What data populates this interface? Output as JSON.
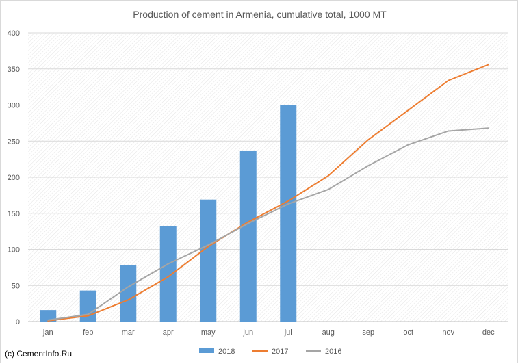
{
  "chart_data": {
    "type": "bar",
    "title": "Production of cement in Armenia, cumulative total, 1000 MT",
    "categories": [
      "jan",
      "feb",
      "mar",
      "apr",
      "may",
      "jun",
      "jul",
      "aug",
      "sep",
      "oct",
      "nov",
      "dec"
    ],
    "ylim": [
      0,
      400
    ],
    "yticks": [
      0,
      50,
      100,
      150,
      200,
      250,
      300,
      350,
      400
    ],
    "series": [
      {
        "name": "2018",
        "type": "bar",
        "color": "#5b9bd5",
        "values": [
          16,
          43,
          78,
          132,
          169,
          237,
          300,
          null,
          null,
          null,
          null,
          null
        ]
      },
      {
        "name": "2017",
        "type": "line",
        "color": "#ed7d31",
        "values": [
          1,
          8,
          30,
          62,
          104,
          138,
          167,
          202,
          252,
          293,
          334,
          356
        ]
      },
      {
        "name": "2016",
        "type": "line",
        "color": "#a5a5a5",
        "values": [
          2,
          10,
          48,
          80,
          106,
          136,
          163,
          183,
          216,
          245,
          264,
          268
        ]
      }
    ],
    "grid": true,
    "legend": "bottom"
  },
  "source": "(c) CementInfo.Ru"
}
